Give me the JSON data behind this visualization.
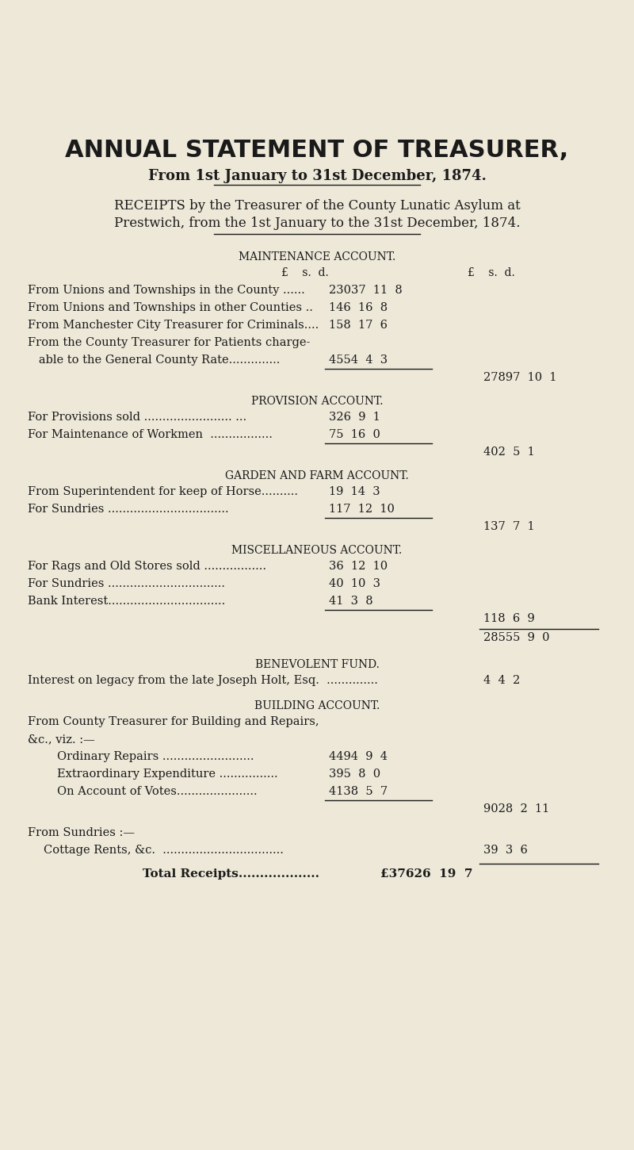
{
  "bg_color": "#ede8d8",
  "text_color": "#1a1a1a",
  "title1": "ANNUAL STATEMENT OF TREASURER,",
  "title2": "From 1st January to 31st December, 1874.",
  "receipts_line1": "RECEIPTS by the Treasurer of the County Lunatic Asylum at",
  "receipts_line2": "Prestwich, from the 1st January to the 31st December, 1874.",
  "maintenance_header": "MAINTENANCE ACCOUNT.",
  "col_header_left": "£    s.  d.",
  "col_header_right": "£    s.  d.",
  "maintenance_rows": [
    [
      "From Unions and Townships in the County ......",
      "23037  11  8",
      ""
    ],
    [
      "From Unions and Townships in other Counties ..",
      "146  16  8",
      ""
    ],
    [
      "From Manchester City Treasurer for Criminals....",
      "158  17  6",
      ""
    ],
    [
      "From the County Treasurer for Patients charge-",
      "",
      ""
    ],
    [
      "   able to the General County Rate..............",
      "4554  4  3",
      ""
    ]
  ],
  "maintenance_total": "27897  10  1",
  "provision_header": "PROVISION ACCOUNT.",
  "provision_rows": [
    [
      "For Provisions sold ........................ ...",
      "326  9  1"
    ],
    [
      "For Maintenance of Workmen  .................",
      "75  16  0"
    ]
  ],
  "provision_total": "402  5  1",
  "garden_header": "GARDEN AND FARM ACCOUNT.",
  "garden_rows": [
    [
      "From Superintendent for keep of Horse..........",
      "19  14  3"
    ],
    [
      "For Sundries .................................",
      "117  12  10"
    ]
  ],
  "garden_total": "137  7  1",
  "misc_header": "MISCELLANEOUS ACCOUNT.",
  "misc_rows": [
    [
      "For Rags and Old Stores sold .................",
      "36  12  10"
    ],
    [
      "For Sundries ................................",
      "40  10  3"
    ],
    [
      "Bank Interest................................",
      "41  3  8"
    ]
  ],
  "misc_total": "118  6  9",
  "grand_subtotal": "28555  9  0",
  "benevolent_header": "BENEVOLENT FUND.",
  "benevolent_row": "Interest on legacy from the late Joseph Holt, Esq.  ..............",
  "benevolent_val": "4  4  2",
  "building_header": "BUILDING ACCOUNT.",
  "building_intro1": "From County Treasurer for Building and Repairs,",
  "building_intro2": "&c., viz. :—",
  "building_rows": [
    [
      "        Ordinary Repairs .........................",
      "4494  9  4"
    ],
    [
      "        Extraordinary Expenditure ................",
      "395  8  0"
    ],
    [
      "        On Account of Votes......................",
      "4138  5  7"
    ]
  ],
  "building_total": "9028  2  11",
  "sundries_label": "From Sundries :—",
  "cottage_row": "Cottage Rents, &c.  .................................",
  "cottage_val": "39  3  6",
  "total_receipts_label": "Total Receipts...................",
  "total_receipts_val": "£37626  19  7"
}
